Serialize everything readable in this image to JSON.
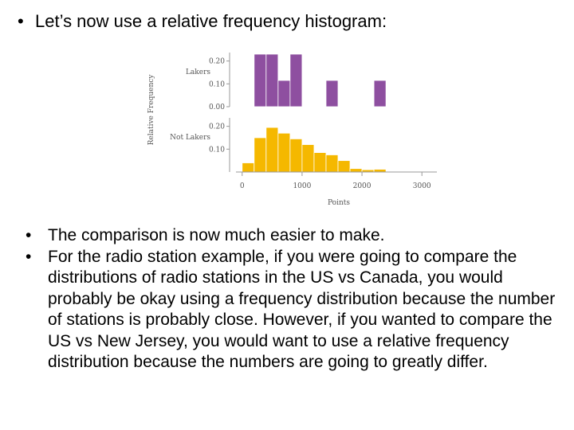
{
  "heading": {
    "bullet": "•",
    "text": "Let’s now use a relative frequency histogram:"
  },
  "bullets": [
    {
      "bullet": "•",
      "text": "The comparison is now much easier to make."
    },
    {
      "bullet": "•",
      "text": "For the radio station example, if you were going to compare the distributions of radio stations in the US vs Canada, you would probably be okay using a frequency distribution because the number of stations is probably close.  However, if you wanted to compare the US vs New Jersey, you would want to use a relative frequency distribution because the numbers are going to greatly differ."
    }
  ],
  "chart_data": {
    "type": "bar",
    "ylabel": "Relative Frequency",
    "xlabel": "Points",
    "x_ticks": [
      0,
      1000,
      2000,
      3000
    ],
    "xlim": [
      -50,
      3250
    ],
    "bin_width": 200,
    "colors": {
      "Lakers": "#8e4fa0",
      "Not Lakers": "#f5b800"
    },
    "panels": [
      {
        "name": "Lakers",
        "y_ticks": [
          "0.20",
          "0.10",
          "0.00"
        ],
        "ylim": [
          0,
          0.23
        ],
        "bins": [
          {
            "x0": 200,
            "x1": 400,
            "value": 0.23
          },
          {
            "x0": 400,
            "x1": 600,
            "value": 0.23
          },
          {
            "x0": 600,
            "x1": 800,
            "value": 0.115
          },
          {
            "x0": 800,
            "x1": 1000,
            "value": 0.23
          },
          {
            "x0": 1400,
            "x1": 1600,
            "value": 0.115
          },
          {
            "x0": 2200,
            "x1": 2400,
            "value": 0.115
          }
        ]
      },
      {
        "name": "Not Lakers",
        "y_ticks": [
          "0.20",
          "0.10"
        ],
        "ylim": [
          0,
          0.23
        ],
        "bins": [
          {
            "x0": 0,
            "x1": 200,
            "value": 0.04
          },
          {
            "x0": 200,
            "x1": 400,
            "value": 0.15
          },
          {
            "x0": 400,
            "x1": 600,
            "value": 0.195
          },
          {
            "x0": 600,
            "x1": 800,
            "value": 0.17
          },
          {
            "x0": 800,
            "x1": 1000,
            "value": 0.145
          },
          {
            "x0": 1000,
            "x1": 1200,
            "value": 0.12
          },
          {
            "x0": 1200,
            "x1": 1400,
            "value": 0.085
          },
          {
            "x0": 1400,
            "x1": 1600,
            "value": 0.075
          },
          {
            "x0": 1600,
            "x1": 1800,
            "value": 0.05
          },
          {
            "x0": 1800,
            "x1": 2000,
            "value": 0.015
          },
          {
            "x0": 2000,
            "x1": 2200,
            "value": 0.01
          },
          {
            "x0": 2200,
            "x1": 2400,
            "value": 0.012
          }
        ]
      }
    ]
  }
}
